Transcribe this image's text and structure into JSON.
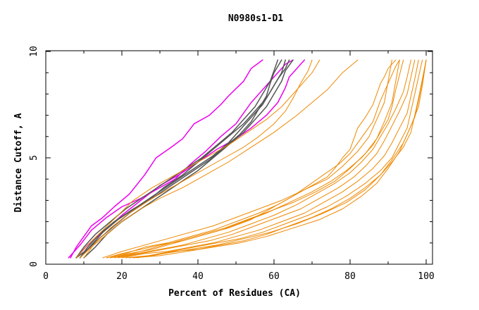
{
  "chart_data": {
    "type": "line",
    "title": "N0980s1-D1",
    "xlabel": "Percent of Residues (CA)",
    "ylabel": "Distance Cutoff, A",
    "xlim": [
      0,
      100
    ],
    "ylim": [
      0,
      10
    ],
    "x_ticks": [
      0,
      20,
      40,
      60,
      80,
      100
    ],
    "x_tick_labels": [
      "0",
      "20",
      "40",
      "60",
      "80",
      "100"
    ],
    "y_ticks": [
      0,
      5,
      10
    ],
    "y_tick_labels": [
      "0",
      "5",
      "10"
    ],
    "colors": {
      "magenta": "#ee00ee",
      "gray": "#555555",
      "orange": "#ee8800"
    },
    "series": [
      {
        "name": "magenta-1",
        "color": "#ee00ee",
        "width": 1.5,
        "x": [
          6.5,
          8,
          10,
          12,
          15,
          18,
          22,
          26,
          29,
          33,
          36,
          39,
          43,
          46,
          48,
          52,
          54,
          57
        ],
        "y": [
          0.3,
          0.8,
          1.3,
          1.8,
          2.2,
          2.7,
          3.3,
          4.2,
          5.0,
          5.5,
          5.9,
          6.6,
          7.0,
          7.5,
          7.9,
          8.6,
          9.2,
          9.6
        ]
      },
      {
        "name": "magenta-2",
        "color": "#ee00ee",
        "width": 1.5,
        "x": [
          6,
          9,
          12,
          16,
          20,
          25,
          30,
          34,
          38,
          42,
          46,
          50,
          52,
          54,
          57,
          60,
          63,
          65
        ],
        "y": [
          0.3,
          0.9,
          1.6,
          2.2,
          2.7,
          3.1,
          3.6,
          4.0,
          4.7,
          5.3,
          6.0,
          6.6,
          7.1,
          7.6,
          8.2,
          8.8,
          9.4,
          9.6
        ]
      },
      {
        "name": "magenta-3",
        "color": "#ee00ee",
        "width": 1.5,
        "x": [
          8,
          11,
          15,
          20,
          25,
          30,
          35,
          40,
          45,
          50,
          54,
          58,
          61,
          63,
          64,
          66,
          68
        ],
        "y": [
          0.3,
          0.9,
          1.5,
          2.3,
          3.0,
          3.7,
          4.2,
          4.8,
          5.4,
          5.9,
          6.4,
          7.0,
          7.6,
          8.3,
          8.8,
          9.2,
          9.6
        ]
      },
      {
        "name": "gray-1",
        "color": "#555555",
        "width": 1.5,
        "x": [
          8,
          10,
          13,
          17,
          21,
          26,
          31,
          36,
          41,
          45,
          49,
          52,
          55,
          57,
          59,
          60,
          61
        ],
        "y": [
          0.3,
          0.8,
          1.4,
          2.0,
          2.6,
          3.2,
          3.8,
          4.4,
          5.0,
          5.6,
          6.2,
          6.8,
          7.4,
          8.0,
          8.6,
          9.1,
          9.6
        ]
      },
      {
        "name": "gray-2",
        "color": "#555555",
        "width": 1.5,
        "x": [
          9,
          11,
          14,
          18,
          23,
          28,
          33,
          38,
          43,
          47,
          51,
          54,
          56,
          58,
          59,
          60,
          62
        ],
        "y": [
          0.3,
          0.8,
          1.4,
          2.0,
          2.6,
          3.1,
          3.7,
          4.3,
          4.9,
          5.5,
          6.1,
          6.7,
          7.3,
          7.9,
          8.5,
          9.0,
          9.6
        ]
      },
      {
        "name": "gray-3",
        "color": "#555555",
        "width": 1.5,
        "x": [
          9,
          12,
          15,
          19,
          24,
          29,
          34,
          39,
          44,
          48,
          51,
          54,
          57,
          59,
          61,
          63,
          64
        ],
        "y": [
          0.3,
          0.9,
          1.5,
          2.1,
          2.7,
          3.3,
          3.9,
          4.5,
          5.1,
          5.7,
          6.3,
          6.9,
          7.5,
          8.1,
          8.7,
          9.2,
          9.6
        ]
      },
      {
        "name": "gray-4",
        "color": "#555555",
        "width": 1.5,
        "x": [
          10,
          13,
          16,
          20,
          25,
          30,
          35,
          40,
          44,
          48,
          52,
          55,
          58,
          60,
          62,
          63,
          65
        ],
        "y": [
          0.3,
          0.8,
          1.4,
          2.0,
          2.6,
          3.2,
          3.8,
          4.4,
          5.0,
          5.6,
          6.2,
          6.8,
          7.4,
          8.0,
          8.6,
          9.1,
          9.6
        ]
      },
      {
        "name": "gray-5",
        "color": "#555555",
        "width": 1.5,
        "x": [
          8,
          11,
          14,
          18,
          22,
          27,
          31,
          36,
          40,
          44,
          48,
          52,
          55,
          58,
          60,
          62,
          63
        ],
        "y": [
          0.3,
          0.7,
          1.2,
          1.8,
          2.4,
          3.0,
          3.6,
          4.2,
          4.8,
          5.4,
          6.0,
          6.6,
          7.2,
          7.8,
          8.4,
          9.0,
          9.6
        ]
      },
      {
        "name": "orange-1",
        "color": "#ee8800",
        "width": 1,
        "x": [
          8,
          11,
          15,
          19,
          23,
          28,
          33,
          38,
          43,
          48,
          53,
          58,
          62,
          66,
          70,
          72
        ],
        "y": [
          0.3,
          0.9,
          1.6,
          2.3,
          3.0,
          3.6,
          4.1,
          4.6,
          5.1,
          5.6,
          6.2,
          6.8,
          7.4,
          8.2,
          9.0,
          9.6
        ]
      },
      {
        "name": "orange-2",
        "color": "#ee8800",
        "width": 1,
        "x": [
          9,
          12,
          16,
          20,
          25,
          30,
          36,
          42,
          48,
          54,
          60,
          66,
          70,
          74,
          78,
          82
        ],
        "y": [
          0.3,
          0.8,
          1.4,
          2.0,
          2.6,
          3.1,
          3.6,
          4.2,
          4.8,
          5.5,
          6.2,
          7.0,
          7.6,
          8.2,
          9.0,
          9.6
        ]
      },
      {
        "name": "orange-3",
        "color": "#ee8800",
        "width": 1,
        "x": [
          10,
          13,
          17,
          22,
          28,
          34,
          40,
          46,
          52,
          56,
          60,
          63,
          65,
          67,
          69,
          70
        ],
        "y": [
          0.3,
          1.0,
          1.7,
          2.4,
          3.1,
          3.7,
          4.3,
          4.9,
          5.5,
          6.0,
          6.6,
          7.2,
          7.8,
          8.5,
          9.1,
          9.6
        ]
      },
      {
        "name": "orange-4",
        "color": "#ee8800",
        "width": 1,
        "x": [
          16,
          20,
          25,
          30,
          36,
          42,
          48,
          54,
          58,
          62,
          66,
          70,
          74,
          76,
          78,
          80,
          81,
          82,
          84,
          85,
          86,
          87,
          88,
          89,
          90,
          91,
          92
        ],
        "y": [
          0.3,
          0.5,
          0.7,
          0.9,
          1.1,
          1.4,
          1.7,
          2.1,
          2.5,
          2.9,
          3.3,
          3.7,
          4.1,
          4.5,
          5.0,
          5.4,
          5.9,
          6.4,
          6.9,
          7.2,
          7.5,
          8.0,
          8.5,
          8.8,
          9.2,
          9.4,
          9.6
        ]
      },
      {
        "name": "orange-5",
        "color": "#ee8800",
        "width": 1,
        "x": [
          16,
          21,
          26,
          32,
          38,
          44,
          50,
          56,
          61,
          65,
          69,
          73,
          77,
          80,
          82,
          84,
          86,
          87,
          88,
          89,
          90,
          91,
          92,
          93
        ],
        "y": [
          0.3,
          0.5,
          0.8,
          1.0,
          1.3,
          1.6,
          2.0,
          2.4,
          2.8,
          3.2,
          3.7,
          4.2,
          4.7,
          5.2,
          5.7,
          6.2,
          6.7,
          7.2,
          7.7,
          8.1,
          8.5,
          8.9,
          9.3,
          9.6
        ]
      },
      {
        "name": "orange-6",
        "color": "#ee8800",
        "width": 1,
        "x": [
          17,
          22,
          28,
          34,
          40,
          46,
          52,
          58,
          64,
          70,
          75,
          79,
          83,
          86,
          88,
          90,
          91,
          92,
          93,
          94
        ],
        "y": [
          0.3,
          0.5,
          0.7,
          1.0,
          1.3,
          1.6,
          2.0,
          2.4,
          2.9,
          3.4,
          3.9,
          4.4,
          5.0,
          5.6,
          6.2,
          6.8,
          7.4,
          8.2,
          8.9,
          9.6
        ]
      },
      {
        "name": "orange-7",
        "color": "#ee8800",
        "width": 1,
        "x": [
          18,
          24,
          30,
          36,
          42,
          48,
          54,
          60,
          66,
          71,
          76,
          80,
          83,
          86,
          88,
          90,
          92,
          94,
          95,
          96
        ],
        "y": [
          0.3,
          0.5,
          0.7,
          0.9,
          1.2,
          1.5,
          1.9,
          2.3,
          2.8,
          3.3,
          3.8,
          4.3,
          4.8,
          5.4,
          6.0,
          6.6,
          7.3,
          8.1,
          8.8,
          9.6
        ]
      },
      {
        "name": "orange-8",
        "color": "#ee8800",
        "width": 1,
        "x": [
          19,
          25,
          31,
          37,
          43,
          49,
          55,
          61,
          67,
          72,
          77,
          81,
          84,
          87,
          89,
          91,
          93,
          95,
          96,
          97
        ],
        "y": [
          0.3,
          0.5,
          0.7,
          0.9,
          1.1,
          1.4,
          1.8,
          2.2,
          2.6,
          3.1,
          3.6,
          4.1,
          4.6,
          5.2,
          5.8,
          6.5,
          7.2,
          8.0,
          8.8,
          9.6
        ]
      },
      {
        "name": "orange-9",
        "color": "#ee8800",
        "width": 1,
        "x": [
          20,
          26,
          32,
          38,
          44,
          50,
          56,
          62,
          68,
          73,
          78,
          82,
          86,
          89,
          91,
          93,
          95,
          96,
          97,
          98
        ],
        "y": [
          0.3,
          0.5,
          0.6,
          0.8,
          1.0,
          1.3,
          1.6,
          2.0,
          2.4,
          2.9,
          3.4,
          3.9,
          4.5,
          5.1,
          5.7,
          6.4,
          7.1,
          7.9,
          8.7,
          9.6
        ]
      },
      {
        "name": "orange-10",
        "color": "#ee8800",
        "width": 1,
        "x": [
          21,
          27,
          33,
          39,
          45,
          51,
          57,
          63,
          69,
          74,
          79,
          84,
          88,
          91,
          93,
          95,
          96,
          97,
          98,
          99
        ],
        "y": [
          0.3,
          0.4,
          0.6,
          0.8,
          1.0,
          1.2,
          1.5,
          1.9,
          2.3,
          2.7,
          3.2,
          3.8,
          4.4,
          5.0,
          5.7,
          6.4,
          7.2,
          8.0,
          8.8,
          9.6
        ]
      },
      {
        "name": "orange-11",
        "color": "#ee8800",
        "width": 1,
        "x": [
          22,
          28,
          34,
          40,
          46,
          52,
          58,
          64,
          70,
          75,
          80,
          84,
          88,
          91,
          94,
          96,
          97,
          98,
          99,
          100
        ],
        "y": [
          0.3,
          0.4,
          0.6,
          0.7,
          0.9,
          1.1,
          1.4,
          1.8,
          2.2,
          2.6,
          3.1,
          3.6,
          4.2,
          4.8,
          5.5,
          6.2,
          7.0,
          7.8,
          8.7,
          9.6
        ]
      },
      {
        "name": "orange-12",
        "color": "#ee8800",
        "width": 1,
        "x": [
          23,
          30,
          37,
          44,
          51,
          58,
          65,
          72,
          78,
          83,
          87,
          90,
          93,
          95,
          97,
          98,
          99,
          100
        ],
        "y": [
          0.3,
          0.4,
          0.6,
          0.8,
          1.0,
          1.3,
          1.7,
          2.1,
          2.6,
          3.2,
          3.8,
          4.5,
          5.3,
          6.1,
          6.9,
          7.7,
          8.6,
          9.6
        ]
      },
      {
        "name": "orange-13",
        "color": "#ee8800",
        "width": 1,
        "x": [
          24,
          31,
          38,
          45,
          52,
          59,
          66,
          73,
          79,
          84,
          88,
          91,
          94,
          96,
          98,
          99,
          100
        ],
        "y": [
          0.3,
          0.5,
          0.7,
          0.9,
          1.2,
          1.5,
          1.9,
          2.4,
          2.9,
          3.5,
          4.2,
          4.9,
          5.7,
          6.5,
          7.4,
          8.4,
          9.6
        ]
      },
      {
        "name": "orange-14",
        "color": "#ee8800",
        "width": 1,
        "x": [
          15,
          20,
          26,
          32,
          38,
          44,
          50,
          56,
          62,
          68,
          74,
          78,
          82,
          85,
          87,
          89,
          90,
          91
        ],
        "y": [
          0.3,
          0.6,
          0.9,
          1.2,
          1.5,
          1.8,
          2.2,
          2.6,
          3.0,
          3.5,
          4.0,
          4.6,
          5.3,
          6.0,
          6.8,
          7.6,
          8.6,
          9.6
        ]
      },
      {
        "name": "orange-15",
        "color": "#ee8800",
        "width": 1,
        "x": [
          17,
          23,
          29,
          35,
          41,
          47,
          53,
          59,
          65,
          71,
          76,
          80,
          84,
          87,
          89,
          91,
          92,
          93
        ],
        "y": [
          0.3,
          0.5,
          0.8,
          1.1,
          1.4,
          1.7,
          2.1,
          2.5,
          2.9,
          3.4,
          3.9,
          4.5,
          5.2,
          5.9,
          6.7,
          7.6,
          8.6,
          9.6
        ]
      }
    ]
  }
}
